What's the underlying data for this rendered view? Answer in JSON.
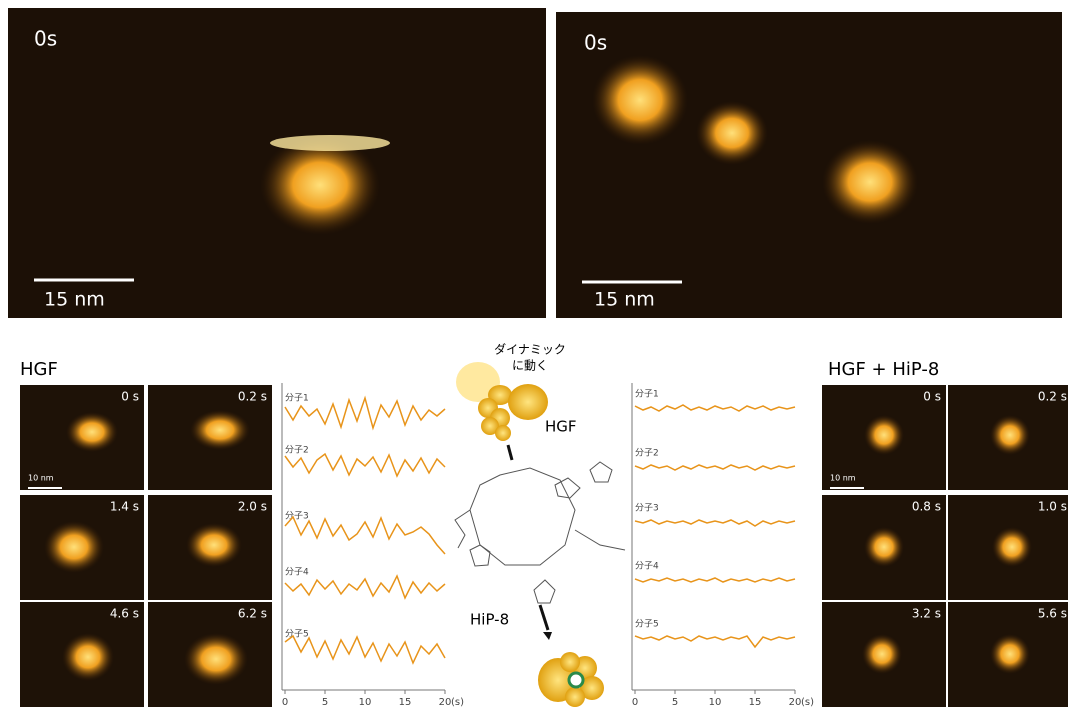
{
  "top_panels": [
    {
      "time": "0s",
      "scale_bar": "15 nm"
    },
    {
      "time": "0s",
      "scale_bar": "15 nm"
    }
  ],
  "hgf": {
    "title": "HGF",
    "frames": [
      "0 s",
      "0.2 s",
      "1.4 s",
      "2.0 s",
      "4.6 s",
      "6.2 s"
    ],
    "scale_bar": "10 nm"
  },
  "hgf_hip8": {
    "title": "HGF + HiP-8",
    "frames": [
      "0 s",
      "0.2 s",
      "0.8 s",
      "1.0 s",
      "3.2 s",
      "5.6 s"
    ],
    "scale_bar": "10 nm"
  },
  "center": {
    "annotation": [
      "ダイナミック",
      "に動く"
    ],
    "protein": "HGF",
    "compound": "HiP-8"
  },
  "traces": [
    {
      "x": [
        0,
        1,
        2,
        3,
        4,
        5,
        6,
        7,
        8,
        9,
        10,
        11,
        12,
        13,
        14,
        15,
        16,
        17,
        18,
        19,
        20
      ],
      "xlim": [
        0,
        20
      ],
      "xticks": [
        0,
        5,
        10,
        15,
        20
      ],
      "x_unit": "(s)",
      "ylim": [
        -3,
        3
      ],
      "series": [
        {
          "name": "分子1",
          "values": [
            0.5,
            -0.8,
            0.6,
            -0.4,
            0.3,
            -1.2,
            0.8,
            -1.5,
            1.2,
            -0.9,
            1.4,
            -1.6,
            0.7,
            -0.5,
            1.1,
            -1.3,
            0.6,
            -0.8,
            0.2,
            -0.4,
            0.3
          ]
        },
        {
          "name": "分子2",
          "values": [
            0.8,
            -0.3,
            0.6,
            -0.9,
            0.4,
            1.0,
            -0.6,
            0.8,
            -1.1,
            0.5,
            -0.2,
            0.7,
            -0.8,
            0.9,
            -1.2,
            0.4,
            -0.7,
            0.6,
            -0.9,
            0.5,
            -0.3
          ]
        },
        {
          "name": "分子3",
          "values": [
            0.4,
            1.3,
            -0.5,
            0.9,
            -0.8,
            1.1,
            -0.6,
            0.5,
            -1.0,
            -0.4,
            0.8,
            -0.7,
            1.2,
            -0.9,
            0.6,
            -0.5,
            -0.2,
            0.3,
            -0.4,
            -1.5,
            -2.4
          ]
        },
        {
          "name": "分子4",
          "values": [
            0.3,
            -0.5,
            0.2,
            -0.9,
            0.6,
            -0.3,
            0.5,
            -0.8,
            0.2,
            -0.4,
            0.7,
            -1.0,
            0.3,
            -0.6,
            1.0,
            -1.2,
            0.4,
            -0.7,
            0.3,
            -0.5,
            0.2
          ]
        },
        {
          "name": "分子5",
          "values": [
            0.6,
            1.2,
            -0.4,
            1.0,
            -0.9,
            0.7,
            -1.1,
            0.8,
            -0.6,
            1.1,
            -0.9,
            0.5,
            -1.3,
            0.4,
            -0.8,
            0.6,
            -1.5,
            0.2,
            -0.6,
            0.4,
            -1.0
          ]
        }
      ]
    },
    {
      "x": [
        0,
        1,
        2,
        3,
        4,
        5,
        6,
        7,
        8,
        9,
        10,
        11,
        12,
        13,
        14,
        15,
        16,
        17,
        18,
        19,
        20
      ],
      "xlim": [
        0,
        20
      ],
      "xticks": [
        0,
        5,
        10,
        15,
        20
      ],
      "x_unit": "(s)",
      "ylim": [
        -3,
        3
      ],
      "series": [
        {
          "name": "分子1",
          "values": [
            0.2,
            -0.2,
            0.1,
            -0.3,
            0.2,
            -0.1,
            0.3,
            -0.2,
            0.1,
            -0.2,
            0.2,
            -0.1,
            0.1,
            -0.3,
            0.2,
            -0.1,
            0.2,
            -0.2,
            0.1,
            -0.1,
            0.1
          ]
        },
        {
          "name": "分子2",
          "values": [
            0.1,
            -0.2,
            0.2,
            -0.1,
            0.1,
            -0.3,
            0.1,
            -0.2,
            0.2,
            -0.1,
            0.1,
            -0.2,
            0.2,
            -0.1,
            0.1,
            -0.3,
            0.1,
            -0.2,
            0.1,
            -0.1,
            0.1
          ]
        },
        {
          "name": "分子3",
          "values": [
            0.1,
            -0.1,
            0.2,
            -0.2,
            0.1,
            -0.1,
            0.1,
            -0.2,
            0.2,
            -0.1,
            0.1,
            -0.1,
            0.2,
            -0.2,
            0.1,
            -0.4,
            0.1,
            -0.2,
            0.1,
            -0.1,
            0.1
          ]
        },
        {
          "name": "分子4",
          "values": [
            0.1,
            -0.2,
            0.1,
            -0.1,
            0.2,
            -0.1,
            0.1,
            -0.2,
            0.1,
            -0.1,
            0.2,
            -0.2,
            0.1,
            -0.1,
            0.1,
            -0.2,
            0.1,
            -0.1,
            0.2,
            -0.1,
            0.1
          ]
        },
        {
          "name": "分子5",
          "values": [
            0.2,
            -0.1,
            0.1,
            -0.2,
            0.2,
            -0.1,
            0.1,
            -0.3,
            0.2,
            -0.1,
            0.1,
            -0.2,
            0.1,
            -0.1,
            0.2,
            -0.9,
            0.1,
            -0.2,
            0.1,
            -0.1,
            0.1
          ]
        }
      ]
    }
  ]
}
